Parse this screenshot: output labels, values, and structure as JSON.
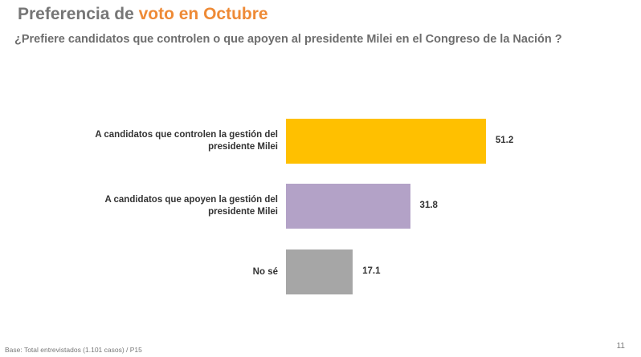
{
  "title": {
    "part1": "Preferencia de ",
    "part2": "voto en Octubre",
    "accent": "#EE8A36"
  },
  "subtitle": "¿Prefiere candidatos que controlen o que apoyen al presidente Milei en el Congreso de la Nación ?",
  "chart_data": {
    "type": "bar",
    "orientation": "horizontal",
    "categories": [
      "A candidatos que controlen la gestión del presidente Milei",
      "A candidatos que apoyen la gestión del presidente Milei",
      "No sé"
    ],
    "values": [
      51.2,
      31.8,
      17.1
    ],
    "value_labels": [
      "51.2",
      "31.8",
      "17.1"
    ],
    "colors": [
      "#FFC000",
      "#B3A2C7",
      "#A6A6A6"
    ],
    "xlim": [
      0,
      100
    ],
    "grid": false
  },
  "footer": {
    "base": "Base: Total entrevistados (1.101 casos) / P15",
    "page": "11"
  }
}
